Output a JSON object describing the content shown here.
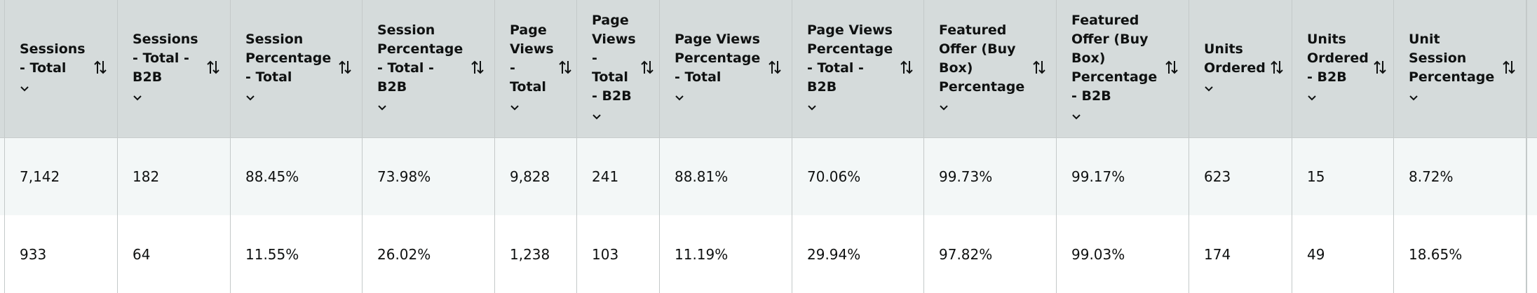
{
  "table": {
    "headers": [
      "Sessions - Total",
      "Sessions - Total - B2B",
      "Session Percentage - Total",
      "Session Percentage - Total - B2B",
      "Page Views - Total",
      "Page Views - Total - B2B",
      "Page Views Percentage - Total",
      "Page Views Percentage - Total - B2B",
      "Featured Offer (Buy Box) Percentage",
      "Featured Offer (Buy Box) Percentage - B2B",
      "Units Ordered",
      "Units Ordered - B2B",
      "Unit Session Percentage"
    ],
    "rows": [
      [
        "7,142",
        "182",
        "88.45%",
        "73.98%",
        "9,828",
        "241",
        "88.81%",
        "70.06%",
        "99.73%",
        "99.17%",
        "623",
        "15",
        "8.72%"
      ],
      [
        "933",
        "64",
        "11.55%",
        "26.02%",
        "1,238",
        "103",
        "11.19%",
        "29.94%",
        "97.82%",
        "99.03%",
        "174",
        "49",
        "18.65%"
      ]
    ]
  }
}
